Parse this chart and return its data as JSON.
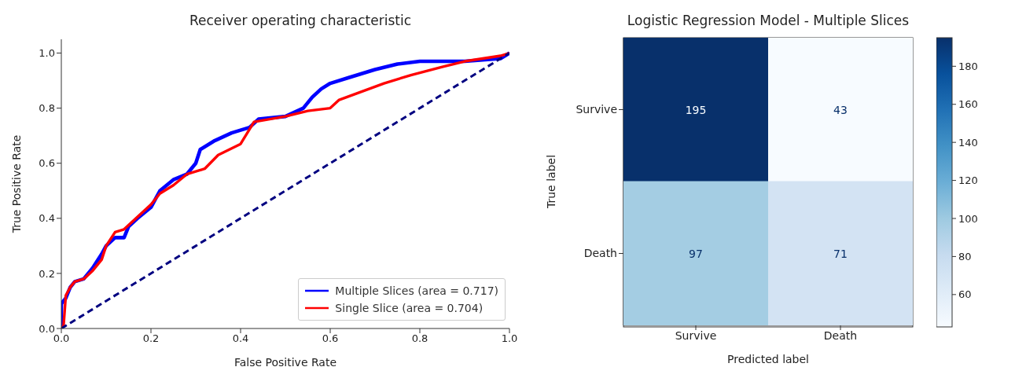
{
  "chart_data": [
    {
      "type": "line",
      "title": "Receiver operating characteristic",
      "xlabel": "False Positive Rate",
      "ylabel": "True Positive Rate",
      "xlim": [
        0,
        1
      ],
      "ylim": [
        0,
        1.05
      ],
      "xticks": [
        {
          "value": 0,
          "label": "0.0"
        },
        0.2,
        0.4,
        0.6,
        0.8,
        {
          "value": 1,
          "label": "1.0"
        }
      ],
      "yticks": [
        {
          "value": 0,
          "label": "0.0"
        },
        0.2,
        0.4,
        0.6,
        0.8,
        {
          "value": 1,
          "label": "1.0"
        }
      ],
      "legend": "bottom right",
      "series": [
        {
          "name": "Multiple Slices (area = 0.717)",
          "color": "#0000ff",
          "x": [
            0,
            0,
            0.01,
            0.02,
            0.03,
            0.05,
            0.07,
            0.09,
            0.1,
            0.12,
            0.14,
            0.15,
            0.17,
            0.2,
            0.22,
            0.25,
            0.28,
            0.3,
            0.31,
            0.34,
            0.38,
            0.42,
            0.44,
            0.5,
            0.54,
            0.56,
            0.58,
            0.6,
            0.64,
            0.7,
            0.75,
            0.8,
            0.9,
            0.98,
            1
          ],
          "values": [
            0,
            0.09,
            0.11,
            0.15,
            0.17,
            0.18,
            0.22,
            0.27,
            0.3,
            0.33,
            0.33,
            0.37,
            0.4,
            0.44,
            0.5,
            0.54,
            0.56,
            0.6,
            0.65,
            0.68,
            0.71,
            0.73,
            0.76,
            0.77,
            0.8,
            0.84,
            0.87,
            0.89,
            0.91,
            0.94,
            0.96,
            0.97,
            0.97,
            0.98,
            1
          ]
        },
        {
          "name": "Single Slice (area = 0.704)",
          "color": "#ff0000",
          "x": [
            0,
            0.005,
            0.01,
            0.02,
            0.03,
            0.05,
            0.07,
            0.09,
            0.1,
            0.12,
            0.14,
            0.16,
            0.18,
            0.2,
            0.22,
            0.25,
            0.28,
            0.32,
            0.35,
            0.4,
            0.43,
            0.5,
            0.55,
            0.6,
            0.62,
            0.67,
            0.72,
            0.78,
            0.85,
            0.9,
            0.98,
            1
          ],
          "values": [
            0,
            0.01,
            0.12,
            0.15,
            0.17,
            0.18,
            0.21,
            0.25,
            0.3,
            0.35,
            0.36,
            0.39,
            0.42,
            0.45,
            0.49,
            0.52,
            0.56,
            0.58,
            0.63,
            0.67,
            0.75,
            0.77,
            0.79,
            0.8,
            0.83,
            0.86,
            0.89,
            0.92,
            0.95,
            0.97,
            0.99,
            1
          ]
        },
        {
          "color": "#000080",
          "line_style": "dashed",
          "x": [
            0,
            1
          ],
          "values": [
            0,
            1
          ]
        }
      ]
    },
    {
      "type": "heatmap",
      "title": "Logistic Regression Model - Multiple Slices",
      "xlabel": "Predicted label",
      "ylabel": "True label",
      "categories": [
        "Survive",
        "Death"
      ],
      "y_categories": [
        "Survive",
        "Death"
      ],
      "cells": [
        [
          195,
          43
        ],
        [
          97,
          71
        ]
      ],
      "clim": [
        43,
        195
      ],
      "cticks": [
        60,
        80,
        100,
        120,
        140,
        160,
        180
      ],
      "data_labels": true
    }
  ]
}
